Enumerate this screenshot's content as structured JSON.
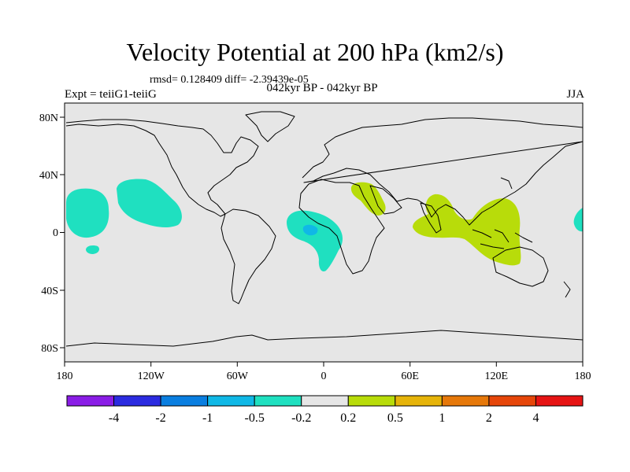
{
  "header": {
    "title": "Velocity Potential at 200 hPa (km2/s)",
    "stats": "rmsd= 0.128409 diff= -2.39439e-05",
    "expt": "Expt = teiiG1-teiiG",
    "period": "042kyr BP - 042kyr BP",
    "season": "JJA"
  },
  "map": {
    "background_color": "#e6e6e6",
    "coast_color": "#000000",
    "x_ticks": [
      "180",
      "120W",
      "60W",
      "0",
      "60E",
      "120E",
      "180"
    ],
    "y_ticks": [
      "80N",
      "40N",
      "0",
      "40S",
      "80S"
    ]
  },
  "colorbar": {
    "labels": [
      "-4",
      "-2",
      "-1",
      "-0.5",
      "-0.2",
      "0.2",
      "0.5",
      "1",
      "2",
      "4"
    ],
    "colors": [
      "#8a1de6",
      "#2b2be0",
      "#0a7ee0",
      "#10b8e6",
      "#1fe0c0",
      "#e6e6e6",
      "#b8dc0a",
      "#e6b40a",
      "#e6780a",
      "#e6460a",
      "#e61414"
    ]
  }
}
